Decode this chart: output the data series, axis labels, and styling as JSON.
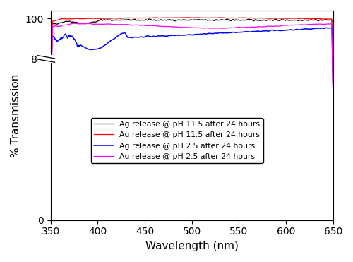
{
  "xlim": [
    350,
    650
  ],
  "ylim": [
    0,
    104
  ],
  "xlabel": "Wavelength (nm)",
  "ylabel": "% Transmission",
  "yticks": [
    0,
    80,
    100
  ],
  "xticks": [
    350,
    400,
    450,
    500,
    550,
    600,
    650
  ],
  "legend_entries": [
    "Ag release @ pH 11.5 after 24 hours",
    "Au release @ pH 11.5 after 24 hours",
    "Ag release @ pH 2.5 after 24 hours",
    "Au release @ pH 2.5 after 24 hours"
  ],
  "line_colors": [
    "black",
    "red",
    "blue",
    "magenta"
  ],
  "figsize": [
    5.0,
    3.71
  ],
  "dpi": 100
}
